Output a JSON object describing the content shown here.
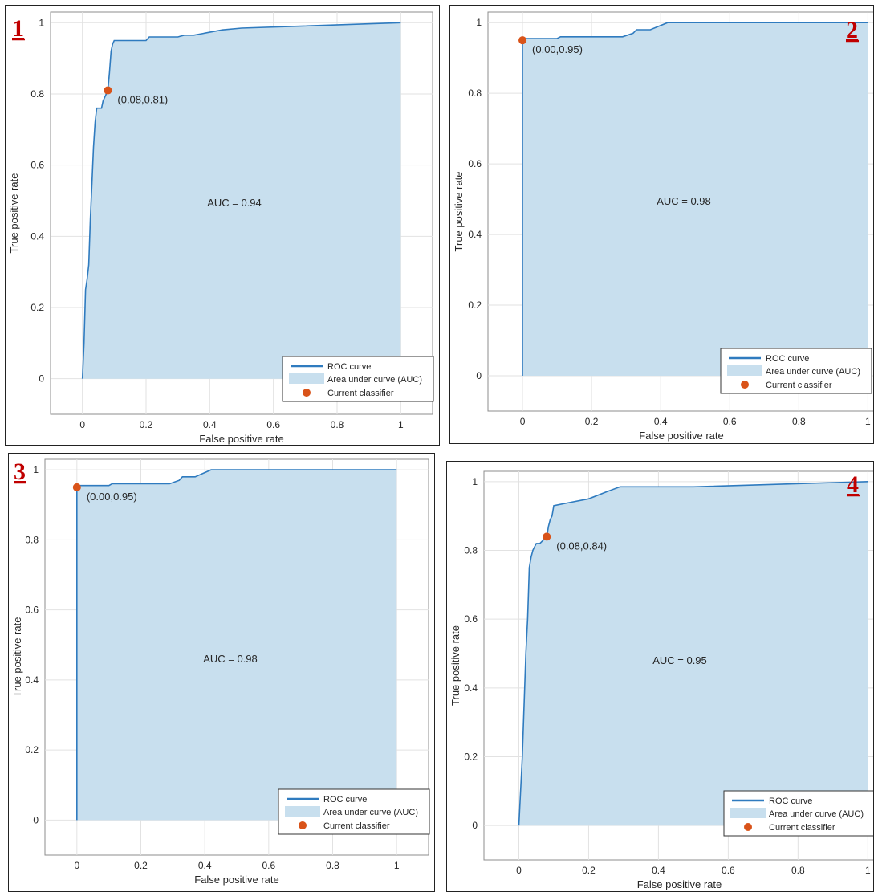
{
  "colors": {
    "curve": "#2f7bbf",
    "fill": "#c8dfee",
    "point": "#d95319",
    "panel_label": "#c00000",
    "grid": "#e2e2e2"
  },
  "chart_data": [
    {
      "type": "area",
      "panel_label": "1",
      "xlabel": "False positive rate",
      "ylabel": "True positive rate",
      "xlim": [
        -0.1,
        1.1
      ],
      "ylim": [
        -0.1,
        1.03
      ],
      "xticks": [
        "0",
        "0.2",
        "0.4",
        "0.6",
        "0.8",
        "1"
      ],
      "yticks": [
        "0",
        "0.2",
        "0.4",
        "0.6",
        "0.8",
        "1"
      ],
      "grid": true,
      "legend_position": "bottom-right",
      "series": [
        {
          "name": "ROC curve",
          "x": [
            0,
            0.005,
            0.01,
            0.015,
            0.02,
            0.025,
            0.03,
            0.035,
            0.04,
            0.045,
            0.05,
            0.05,
            0.06,
            0.065,
            0.07,
            0.075,
            0.08,
            0.085,
            0.09,
            0.095,
            0.1,
            0.11,
            0.2,
            0.21,
            0.3,
            0.32,
            0.35,
            0.38,
            0.44,
            0.5,
            1
          ],
          "y": [
            0,
            0.1,
            0.25,
            0.28,
            0.32,
            0.45,
            0.55,
            0.65,
            0.72,
            0.76,
            0.76,
            0.76,
            0.76,
            0.78,
            0.79,
            0.8,
            0.81,
            0.86,
            0.92,
            0.94,
            0.95,
            0.95,
            0.95,
            0.96,
            0.96,
            0.965,
            0.965,
            0.97,
            0.98,
            0.985,
            1.0
          ]
        }
      ],
      "current_classifier": {
        "x": 0.08,
        "y": 0.81,
        "label": "(0.08,0.81)"
      },
      "auc_text": "AUC = 0.94",
      "legend": [
        "ROC curve",
        "Area under curve (AUC)",
        "Current classifier"
      ]
    },
    {
      "type": "area",
      "panel_label": "2",
      "xlabel": "False positive rate",
      "ylabel": "True positive rate",
      "xlim": [
        -0.1,
        1.02
      ],
      "ylim": [
        -0.1,
        1.03
      ],
      "xticks": [
        "0",
        "0.2",
        "0.4",
        "0.6",
        "0.8",
        "1"
      ],
      "yticks": [
        "0",
        "0.2",
        "0.4",
        "0.6",
        "0.8",
        "1"
      ],
      "grid": true,
      "legend_position": "bottom-right",
      "series": [
        {
          "name": "ROC curve",
          "x": [
            0,
            0,
            0.005,
            0.1,
            0.11,
            0.29,
            0.32,
            0.33,
            0.37,
            0.42,
            1
          ],
          "y": [
            0,
            0.95,
            0.955,
            0.955,
            0.96,
            0.96,
            0.97,
            0.98,
            0.98,
            1.0,
            1.0
          ]
        }
      ],
      "current_classifier": {
        "x": 0.0,
        "y": 0.95,
        "label": "(0.00,0.95)"
      },
      "auc_text": "AUC = 0.98",
      "legend": [
        "ROC curve",
        "Area under curve (AUC)",
        "Current classifier"
      ]
    },
    {
      "type": "area",
      "panel_label": "3",
      "xlabel": "False positive rate",
      "ylabel": "True positive rate",
      "xlim": [
        -0.1,
        1.1
      ],
      "ylim": [
        -0.1,
        1.03
      ],
      "xticks": [
        "0",
        "0.2",
        "0.4",
        "0.6",
        "0.8",
        "1"
      ],
      "yticks": [
        "0",
        "0.2",
        "0.4",
        "0.6",
        "0.8",
        "1"
      ],
      "grid": true,
      "legend_position": "bottom-right",
      "series": [
        {
          "name": "ROC curve",
          "x": [
            0,
            0,
            0.005,
            0.1,
            0.11,
            0.29,
            0.32,
            0.33,
            0.37,
            0.42,
            1
          ],
          "y": [
            0,
            0.95,
            0.955,
            0.955,
            0.96,
            0.96,
            0.97,
            0.98,
            0.98,
            1.0,
            1.0
          ]
        }
      ],
      "current_classifier": {
        "x": 0.0,
        "y": 0.95,
        "label": "(0.00,0.95)"
      },
      "auc_text": "AUC = 0.98",
      "legend": [
        "ROC curve",
        "Area under curve (AUC)",
        "Current classifier"
      ]
    },
    {
      "type": "area",
      "panel_label": "4",
      "xlabel": "False positive rate",
      "ylabel": "True positive rate",
      "xlim": [
        -0.1,
        1.02
      ],
      "ylim": [
        -0.1,
        1.03
      ],
      "xticks": [
        "0",
        "0.2",
        "0.4",
        "0.6",
        "0.8",
        "1"
      ],
      "yticks": [
        "0",
        "0.2",
        "0.4",
        "0.6",
        "0.8",
        "1"
      ],
      "grid": true,
      "legend_position": "bottom-right",
      "series": [
        {
          "name": "ROC curve",
          "x": [
            0,
            0.01,
            0.015,
            0.02,
            0.025,
            0.03,
            0.035,
            0.04,
            0.045,
            0.05,
            0.06,
            0.07,
            0.08,
            0.085,
            0.09,
            0.095,
            0.1,
            0.15,
            0.2,
            0.25,
            0.29,
            0.5,
            1
          ],
          "y": [
            0,
            0.2,
            0.35,
            0.5,
            0.6,
            0.75,
            0.78,
            0.8,
            0.81,
            0.82,
            0.82,
            0.83,
            0.84,
            0.87,
            0.89,
            0.9,
            0.93,
            0.94,
            0.95,
            0.97,
            0.985,
            0.985,
            1.0
          ]
        }
      ],
      "current_classifier": {
        "x": 0.08,
        "y": 0.84,
        "label": "(0.08,0.84)"
      },
      "auc_text": "AUC = 0.95",
      "legend": [
        "ROC curve",
        "Area under curve (AUC)",
        "Current classifier"
      ]
    }
  ]
}
